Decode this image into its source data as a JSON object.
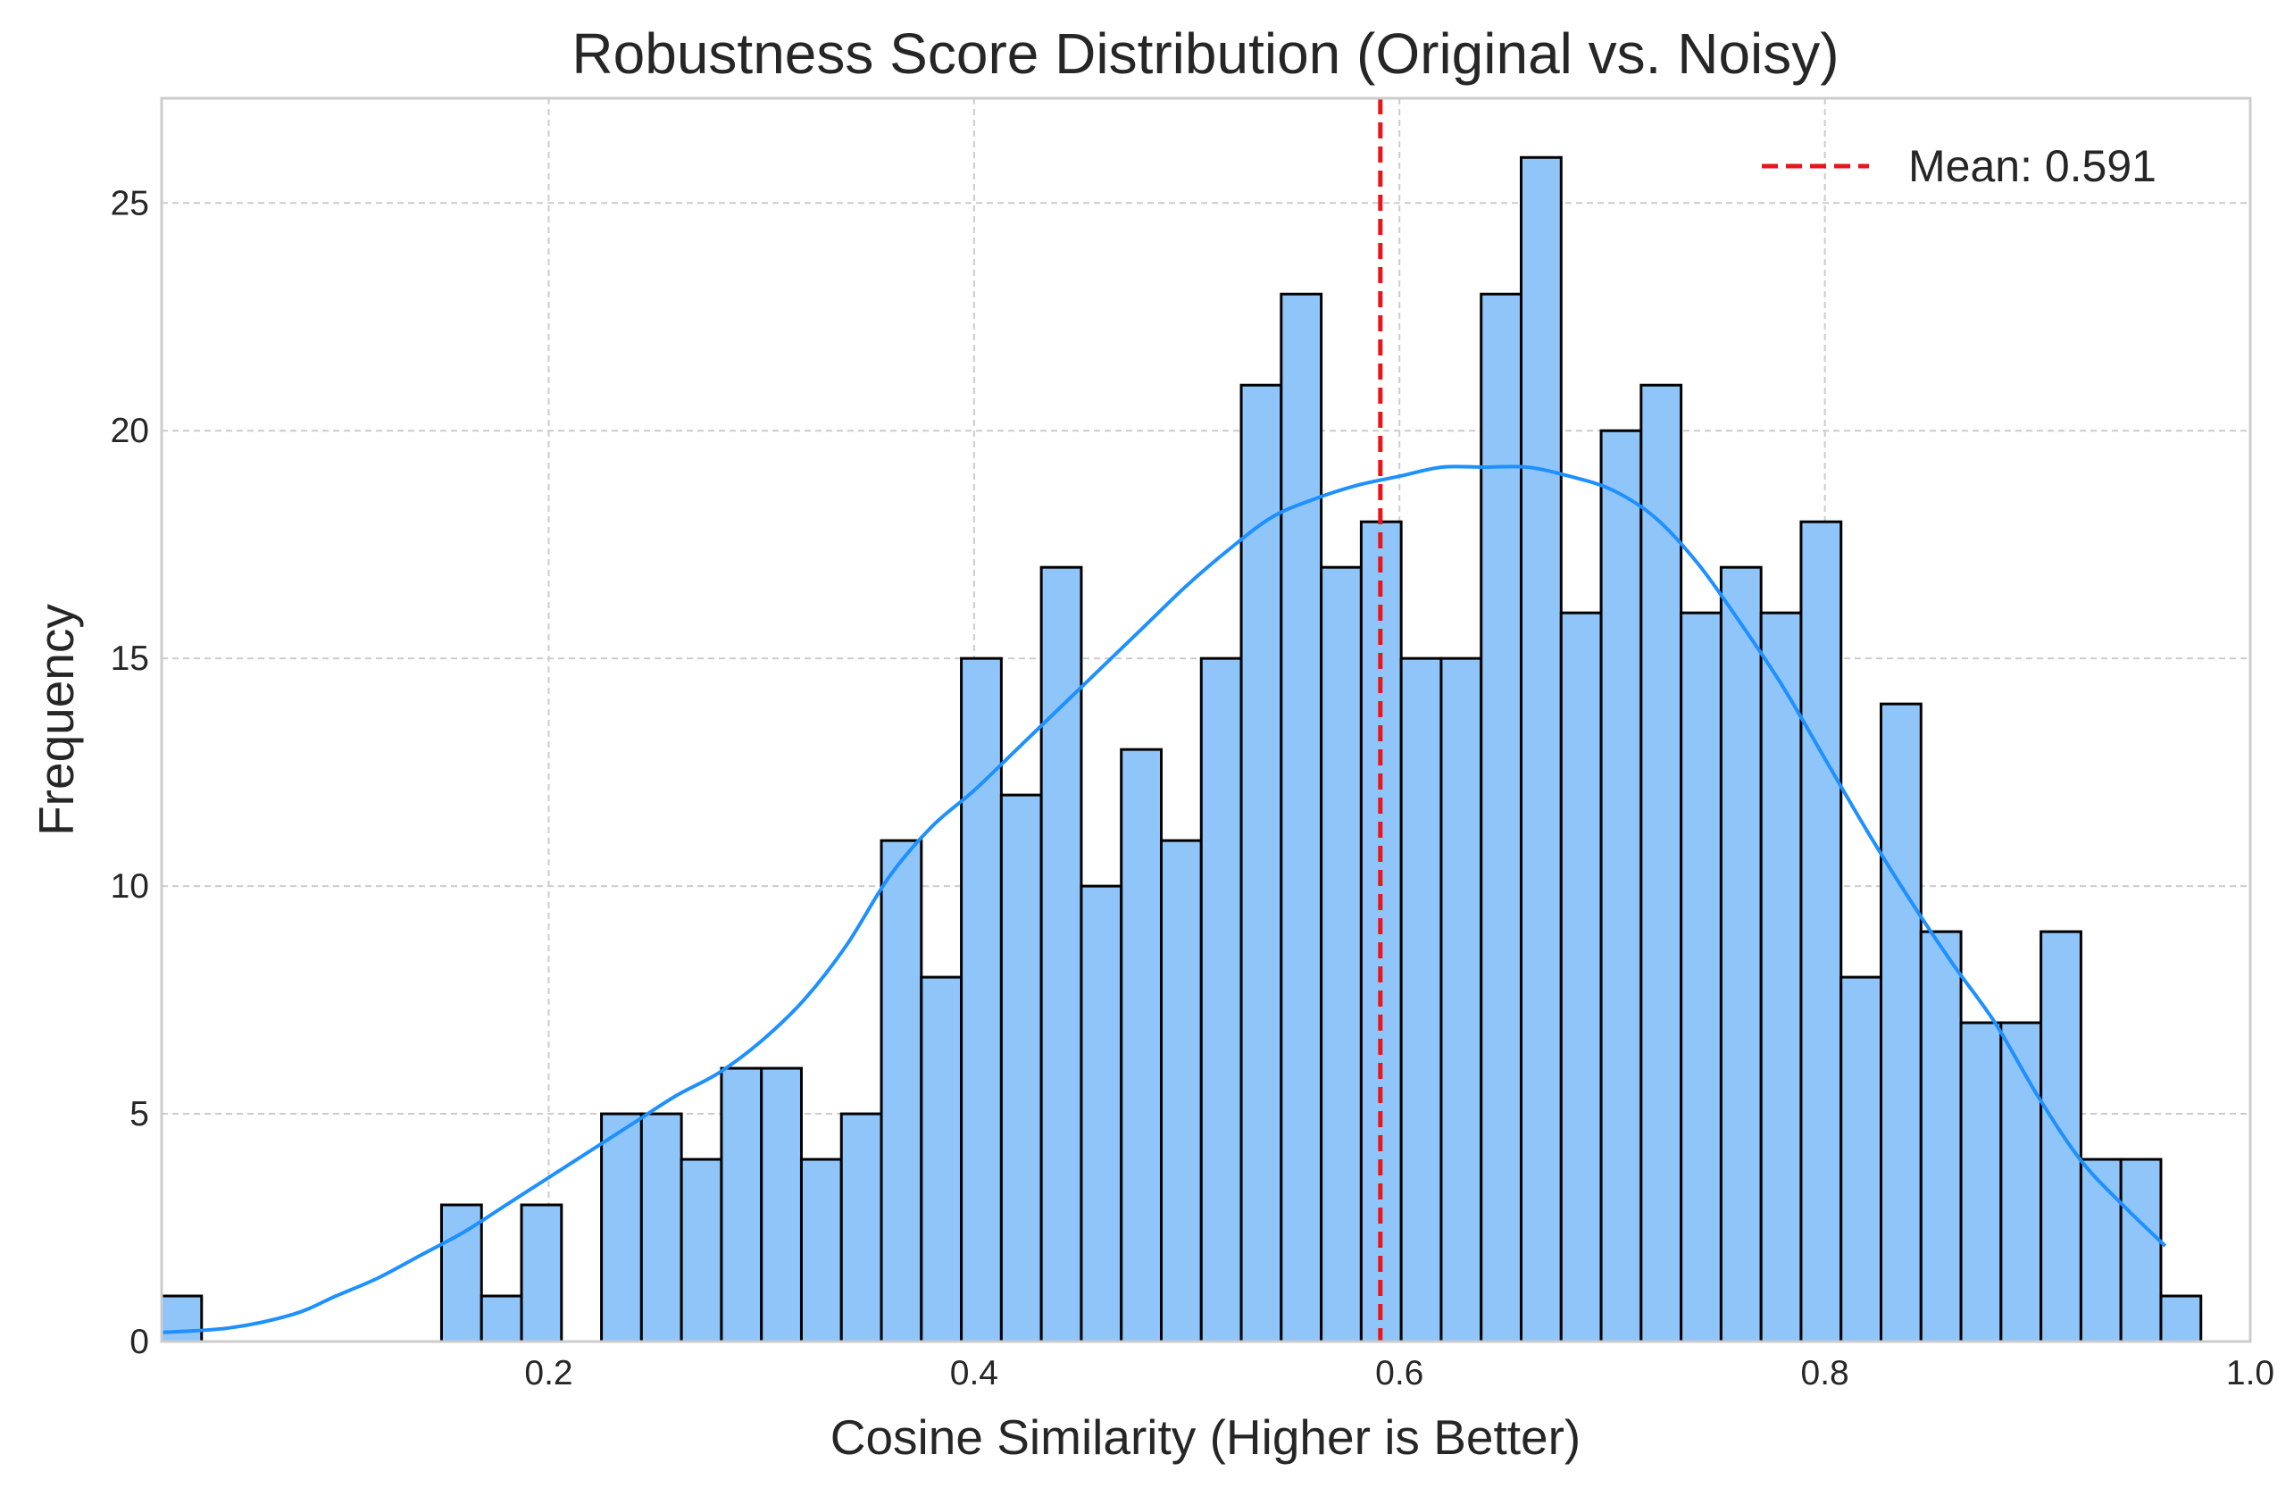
{
  "chart_data": {
    "type": "bar",
    "title": "Robustness Score Distribution (Original vs. Noisy)",
    "xlabel": "Cosine Similarity (Higher is Better)",
    "ylabel": "Frequency",
    "xlim": [
      0.018,
      1.0
    ],
    "ylim": [
      0,
      27.3
    ],
    "grid": true,
    "legend_position": "top-right",
    "x_ticks": [
      "0.2",
      "0.4",
      "0.6",
      "0.8",
      "1.0"
    ],
    "y_ticks": [
      "0",
      "5",
      "10",
      "15",
      "20",
      "25"
    ],
    "bin_start": 0.018,
    "bin_width": 0.0188,
    "bar_color": "#90c5fa",
    "bar_edge_color": "#000000",
    "series": [
      {
        "values": [
          1,
          0,
          0,
          0,
          0,
          0,
          0,
          3,
          1,
          3,
          0,
          5,
          5,
          4,
          6,
          6,
          4,
          5,
          11,
          8,
          15,
          12,
          17,
          10,
          13,
          11,
          15,
          21,
          23,
          17,
          18,
          15,
          15,
          23,
          26,
          16,
          20,
          21,
          16,
          17,
          16,
          18,
          8,
          14,
          9,
          7,
          7,
          9,
          4,
          4,
          1
        ]
      }
    ],
    "kde": {
      "color": "#1e90ff",
      "x": [
        0.018,
        0.05,
        0.08,
        0.1,
        0.12,
        0.14,
        0.16,
        0.18,
        0.2,
        0.22,
        0.24,
        0.26,
        0.28,
        0.3,
        0.32,
        0.34,
        0.36,
        0.38,
        0.4,
        0.42,
        0.44,
        0.46,
        0.48,
        0.5,
        0.52,
        0.54,
        0.56,
        0.58,
        0.6,
        0.62,
        0.64,
        0.66,
        0.68,
        0.7,
        0.72,
        0.74,
        0.76,
        0.78,
        0.8,
        0.82,
        0.84,
        0.86,
        0.88,
        0.9,
        0.92,
        0.94,
        0.96
      ],
      "y": [
        0.2,
        0.3,
        0.6,
        1.0,
        1.4,
        1.9,
        2.4,
        3.0,
        3.6,
        4.2,
        4.8,
        5.4,
        5.9,
        6.6,
        7.5,
        8.7,
        10.2,
        11.3,
        12.1,
        13.0,
        13.9,
        14.8,
        15.7,
        16.6,
        17.4,
        18.1,
        18.5,
        18.8,
        19.0,
        19.2,
        19.2,
        19.2,
        19.0,
        18.7,
        18.1,
        17.1,
        15.8,
        14.4,
        12.8,
        11.2,
        9.7,
        8.3,
        7.0,
        5.4,
        4.0,
        3.0,
        2.1
      ]
    },
    "mean_line": {
      "value": 0.591,
      "label": "Mean: 0.591",
      "color": "#e8161b"
    }
  }
}
